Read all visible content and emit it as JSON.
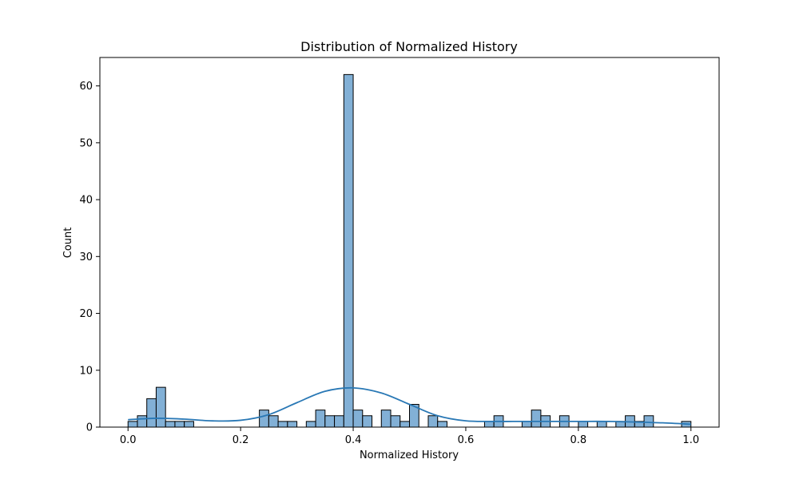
{
  "chart_data": {
    "type": "bar",
    "title": "Distribution of Normalized History",
    "xlabel": "Normalized History",
    "ylabel": "Count",
    "xlim": [
      -0.05,
      1.05
    ],
    "ylim": [
      0,
      65
    ],
    "xticks": [
      0.0,
      0.2,
      0.4,
      0.6,
      0.8,
      1.0
    ],
    "xtick_labels": [
      "0.0",
      "0.2",
      "0.4",
      "0.6",
      "0.8",
      "1.0"
    ],
    "yticks": [
      0,
      10,
      20,
      30,
      40,
      50,
      60
    ],
    "ytick_labels": [
      "0",
      "10",
      "20",
      "30",
      "40",
      "50",
      "60"
    ],
    "bin_width": 0.01667,
    "bins": [
      {
        "x0": 0.0,
        "count": 1
      },
      {
        "x0": 0.01667,
        "count": 2
      },
      {
        "x0": 0.03333,
        "count": 5
      },
      {
        "x0": 0.05,
        "count": 7
      },
      {
        "x0": 0.06667,
        "count": 1
      },
      {
        "x0": 0.08333,
        "count": 1
      },
      {
        "x0": 0.1,
        "count": 1
      },
      {
        "x0": 0.23333,
        "count": 3
      },
      {
        "x0": 0.25,
        "count": 2
      },
      {
        "x0": 0.26667,
        "count": 1
      },
      {
        "x0": 0.28333,
        "count": 1
      },
      {
        "x0": 0.31667,
        "count": 1
      },
      {
        "x0": 0.33333,
        "count": 3
      },
      {
        "x0": 0.35,
        "count": 2
      },
      {
        "x0": 0.36667,
        "count": 2
      },
      {
        "x0": 0.38333,
        "count": 62
      },
      {
        "x0": 0.4,
        "count": 3
      },
      {
        "x0": 0.41667,
        "count": 2
      },
      {
        "x0": 0.45,
        "count": 3
      },
      {
        "x0": 0.46667,
        "count": 2
      },
      {
        "x0": 0.48333,
        "count": 1
      },
      {
        "x0": 0.5,
        "count": 4
      },
      {
        "x0": 0.53333,
        "count": 2
      },
      {
        "x0": 0.55,
        "count": 1
      },
      {
        "x0": 0.63333,
        "count": 1
      },
      {
        "x0": 0.65,
        "count": 2
      },
      {
        "x0": 0.7,
        "count": 1
      },
      {
        "x0": 0.71667,
        "count": 3
      },
      {
        "x0": 0.73333,
        "count": 2
      },
      {
        "x0": 0.76667,
        "count": 2
      },
      {
        "x0": 0.8,
        "count": 1
      },
      {
        "x0": 0.83333,
        "count": 1
      },
      {
        "x0": 0.86667,
        "count": 1
      },
      {
        "x0": 0.88333,
        "count": 2
      },
      {
        "x0": 0.9,
        "count": 1
      },
      {
        "x0": 0.91667,
        "count": 2
      },
      {
        "x0": 0.98333,
        "count": 1
      }
    ],
    "kde": {
      "x": [
        0.0,
        0.05,
        0.1,
        0.15,
        0.2,
        0.25,
        0.3,
        0.35,
        0.4,
        0.45,
        0.5,
        0.55,
        0.6,
        0.65,
        0.7,
        0.75,
        0.8,
        0.85,
        0.9,
        0.95,
        1.0
      ],
      "y": [
        1.3,
        1.55,
        1.4,
        1.1,
        1.2,
        2.2,
        4.3,
        6.3,
        6.9,
        6.0,
        4.0,
        2.0,
        1.1,
        1.0,
        1.0,
        1.0,
        1.0,
        1.0,
        0.9,
        0.75,
        0.5
      ]
    },
    "grid": false,
    "colors": {
      "bar_fill": "#82b0d6",
      "bar_edge": "#000000",
      "kde_line": "#2978b5"
    }
  }
}
